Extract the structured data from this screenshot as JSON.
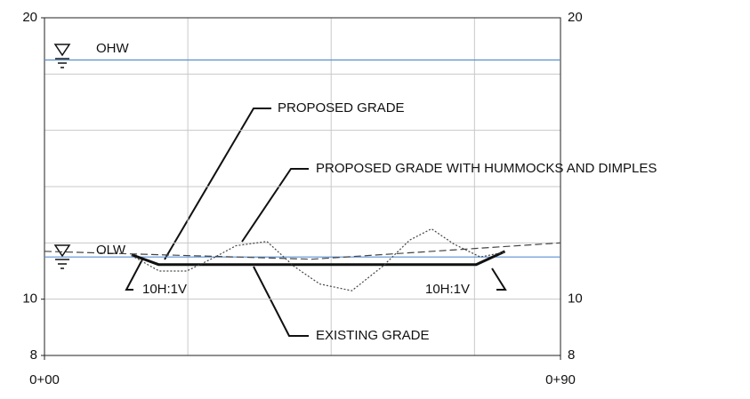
{
  "chart_data": {
    "type": "line",
    "xlim": [
      0,
      90
    ],
    "xticks": [
      {
        "value": 0,
        "label": "0+00"
      },
      {
        "value": 90,
        "label": "0+90"
      }
    ],
    "xgrid": [
      0,
      25,
      50,
      75,
      90
    ],
    "ylim": [
      8,
      20
    ],
    "yticks": [
      8,
      10,
      20
    ],
    "ygrid": [
      8,
      10,
      12,
      14,
      16,
      18,
      20
    ],
    "grid": true,
    "series": [
      {
        "name": "OHW",
        "color": "#5b8fd0",
        "dash": "solid",
        "width": 1.2,
        "x": [
          0,
          90
        ],
        "values": [
          18.5,
          18.5
        ]
      },
      {
        "name": "OLW",
        "color": "#5b8fd0",
        "dash": "solid",
        "width": 1.2,
        "x": [
          0,
          90
        ],
        "values": [
          11.5,
          11.5
        ]
      },
      {
        "name": "PROPOSED GRADE",
        "color": "#111111",
        "dash": "solid",
        "width": 3,
        "x": [
          15.2,
          19.9,
          75.3,
          80.3
        ],
        "values": [
          11.58,
          11.23,
          11.23,
          11.7
        ]
      },
      {
        "name": "PROPOSED GRADE WITH HUMMOCKS AND DIMPLES",
        "color": "#444444",
        "dash": "dotted",
        "width": 1.2,
        "x": [
          15.2,
          20,
          24.8,
          29.5,
          33.4,
          38.8,
          43.5,
          48,
          53.6,
          59,
          63.7,
          67.5,
          71.4,
          76,
          80.3
        ],
        "values": [
          11.55,
          11.0,
          11.0,
          11.47,
          11.9,
          12.05,
          11.17,
          10.54,
          10.3,
          11.17,
          12.1,
          12.5,
          11.96,
          11.5,
          11.67
        ]
      },
      {
        "name": "EXISTING GRADE",
        "color": "#444444",
        "dash": "dashed",
        "width": 1.2,
        "x": [
          0,
          46.6,
          90
        ],
        "values": [
          11.7,
          11.42,
          12.0
        ]
      }
    ],
    "annotations": [
      "10H:1V",
      "10H:1V"
    ]
  }
}
